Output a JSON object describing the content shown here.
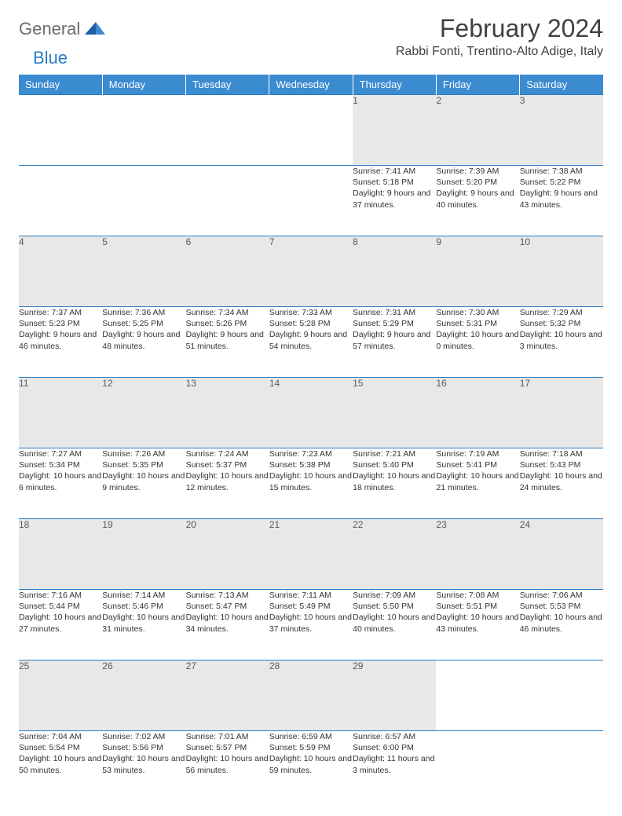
{
  "logo": {
    "part1": "General",
    "part2": "Blue"
  },
  "title": "February 2024",
  "location": "Rabbi Fonti, Trentino-Alto Adige, Italy",
  "colors": {
    "header_bg": "#3b8bd0",
    "header_text": "#ffffff",
    "daynum_bg": "#e8e8e8",
    "border": "#2a7cc7",
    "logo_gray": "#6b6b6b",
    "logo_blue": "#2a7cc7",
    "text": "#333333"
  },
  "day_headers": [
    "Sunday",
    "Monday",
    "Tuesday",
    "Wednesday",
    "Thursday",
    "Friday",
    "Saturday"
  ],
  "weeks": [
    [
      null,
      null,
      null,
      null,
      {
        "n": "1",
        "sr": "7:41 AM",
        "ss": "5:18 PM",
        "dl": "9 hours and 37 minutes."
      },
      {
        "n": "2",
        "sr": "7:39 AM",
        "ss": "5:20 PM",
        "dl": "9 hours and 40 minutes."
      },
      {
        "n": "3",
        "sr": "7:38 AM",
        "ss": "5:22 PM",
        "dl": "9 hours and 43 minutes."
      }
    ],
    [
      {
        "n": "4",
        "sr": "7:37 AM",
        "ss": "5:23 PM",
        "dl": "9 hours and 46 minutes."
      },
      {
        "n": "5",
        "sr": "7:36 AM",
        "ss": "5:25 PM",
        "dl": "9 hours and 48 minutes."
      },
      {
        "n": "6",
        "sr": "7:34 AM",
        "ss": "5:26 PM",
        "dl": "9 hours and 51 minutes."
      },
      {
        "n": "7",
        "sr": "7:33 AM",
        "ss": "5:28 PM",
        "dl": "9 hours and 54 minutes."
      },
      {
        "n": "8",
        "sr": "7:31 AM",
        "ss": "5:29 PM",
        "dl": "9 hours and 57 minutes."
      },
      {
        "n": "9",
        "sr": "7:30 AM",
        "ss": "5:31 PM",
        "dl": "10 hours and 0 minutes."
      },
      {
        "n": "10",
        "sr": "7:29 AM",
        "ss": "5:32 PM",
        "dl": "10 hours and 3 minutes."
      }
    ],
    [
      {
        "n": "11",
        "sr": "7:27 AM",
        "ss": "5:34 PM",
        "dl": "10 hours and 6 minutes."
      },
      {
        "n": "12",
        "sr": "7:26 AM",
        "ss": "5:35 PM",
        "dl": "10 hours and 9 minutes."
      },
      {
        "n": "13",
        "sr": "7:24 AM",
        "ss": "5:37 PM",
        "dl": "10 hours and 12 minutes."
      },
      {
        "n": "14",
        "sr": "7:23 AM",
        "ss": "5:38 PM",
        "dl": "10 hours and 15 minutes."
      },
      {
        "n": "15",
        "sr": "7:21 AM",
        "ss": "5:40 PM",
        "dl": "10 hours and 18 minutes."
      },
      {
        "n": "16",
        "sr": "7:19 AM",
        "ss": "5:41 PM",
        "dl": "10 hours and 21 minutes."
      },
      {
        "n": "17",
        "sr": "7:18 AM",
        "ss": "5:43 PM",
        "dl": "10 hours and 24 minutes."
      }
    ],
    [
      {
        "n": "18",
        "sr": "7:16 AM",
        "ss": "5:44 PM",
        "dl": "10 hours and 27 minutes."
      },
      {
        "n": "19",
        "sr": "7:14 AM",
        "ss": "5:46 PM",
        "dl": "10 hours and 31 minutes."
      },
      {
        "n": "20",
        "sr": "7:13 AM",
        "ss": "5:47 PM",
        "dl": "10 hours and 34 minutes."
      },
      {
        "n": "21",
        "sr": "7:11 AM",
        "ss": "5:49 PM",
        "dl": "10 hours and 37 minutes."
      },
      {
        "n": "22",
        "sr": "7:09 AM",
        "ss": "5:50 PM",
        "dl": "10 hours and 40 minutes."
      },
      {
        "n": "23",
        "sr": "7:08 AM",
        "ss": "5:51 PM",
        "dl": "10 hours and 43 minutes."
      },
      {
        "n": "24",
        "sr": "7:06 AM",
        "ss": "5:53 PM",
        "dl": "10 hours and 46 minutes."
      }
    ],
    [
      {
        "n": "25",
        "sr": "7:04 AM",
        "ss": "5:54 PM",
        "dl": "10 hours and 50 minutes."
      },
      {
        "n": "26",
        "sr": "7:02 AM",
        "ss": "5:56 PM",
        "dl": "10 hours and 53 minutes."
      },
      {
        "n": "27",
        "sr": "7:01 AM",
        "ss": "5:57 PM",
        "dl": "10 hours and 56 minutes."
      },
      {
        "n": "28",
        "sr": "6:59 AM",
        "ss": "5:59 PM",
        "dl": "10 hours and 59 minutes."
      },
      {
        "n": "29",
        "sr": "6:57 AM",
        "ss": "6:00 PM",
        "dl": "11 hours and 3 minutes."
      },
      null,
      null
    ]
  ],
  "labels": {
    "sunrise": "Sunrise:",
    "sunset": "Sunset:",
    "daylight": "Daylight:"
  }
}
